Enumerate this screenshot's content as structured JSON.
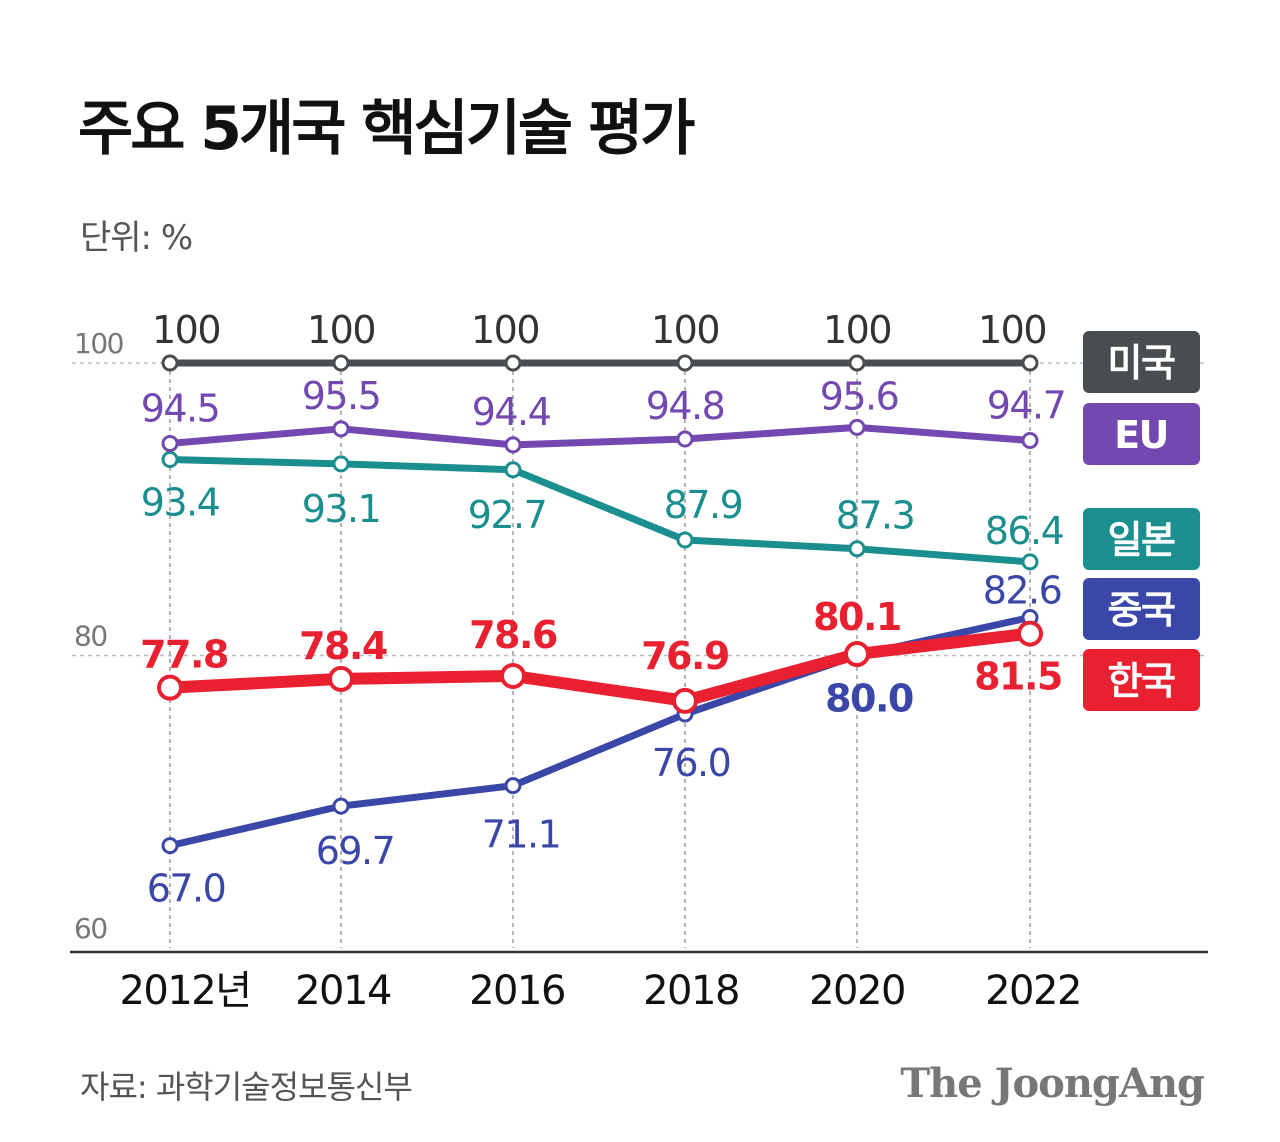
{
  "title": "주요 5개국 핵심기술 평가",
  "unit": "단위: %",
  "source": "자료: 과학기술정보통신부",
  "brand": "The JoongAng",
  "chart_data": {
    "type": "line",
    "title": "주요 5개국 핵심기술 평가",
    "ylabel": "단위: %",
    "xlabel": "",
    "categories": [
      "2012년",
      "2014",
      "2016",
      "2018",
      "2020",
      "2022"
    ],
    "ylim": [
      60,
      100
    ],
    "yticks": [
      100,
      80,
      60
    ],
    "grid": "horizontal dashed at 100 and 80; vertical dashed per year",
    "legend_position": "right",
    "series": [
      {
        "name": "미국",
        "color": "#4a4d50",
        "values": [
          100,
          100,
          100,
          100,
          100,
          100
        ],
        "labels": [
          "100",
          "100",
          "100",
          "100",
          "100",
          "100"
        ]
      },
      {
        "name": "EU",
        "color": "#7348b0",
        "values": [
          94.5,
          95.5,
          94.4,
          94.8,
          95.6,
          94.7
        ],
        "labels": [
          "94.5",
          "95.5",
          "94.4",
          "94.8",
          "95.6",
          "94.7"
        ]
      },
      {
        "name": "일본",
        "color": "#1b8f8f",
        "values": [
          93.4,
          93.1,
          92.7,
          87.9,
          87.3,
          86.4
        ],
        "labels": [
          "93.4",
          "93.1",
          "92.7",
          "87.9",
          "87.3",
          "86.4"
        ]
      },
      {
        "name": "중국",
        "color": "#3a47a8",
        "values": [
          67.0,
          69.7,
          71.1,
          76.0,
          80.0,
          82.6
        ],
        "labels": [
          "67.0",
          "69.7",
          "71.1",
          "76.0",
          "80.0",
          "82.6"
        ]
      },
      {
        "name": "한국",
        "color": "#e8202f",
        "values": [
          77.8,
          78.4,
          78.6,
          76.9,
          80.1,
          81.5
        ],
        "labels": [
          "77.8",
          "78.4",
          "78.6",
          "76.9",
          "80.1",
          "81.5"
        ]
      }
    ]
  }
}
